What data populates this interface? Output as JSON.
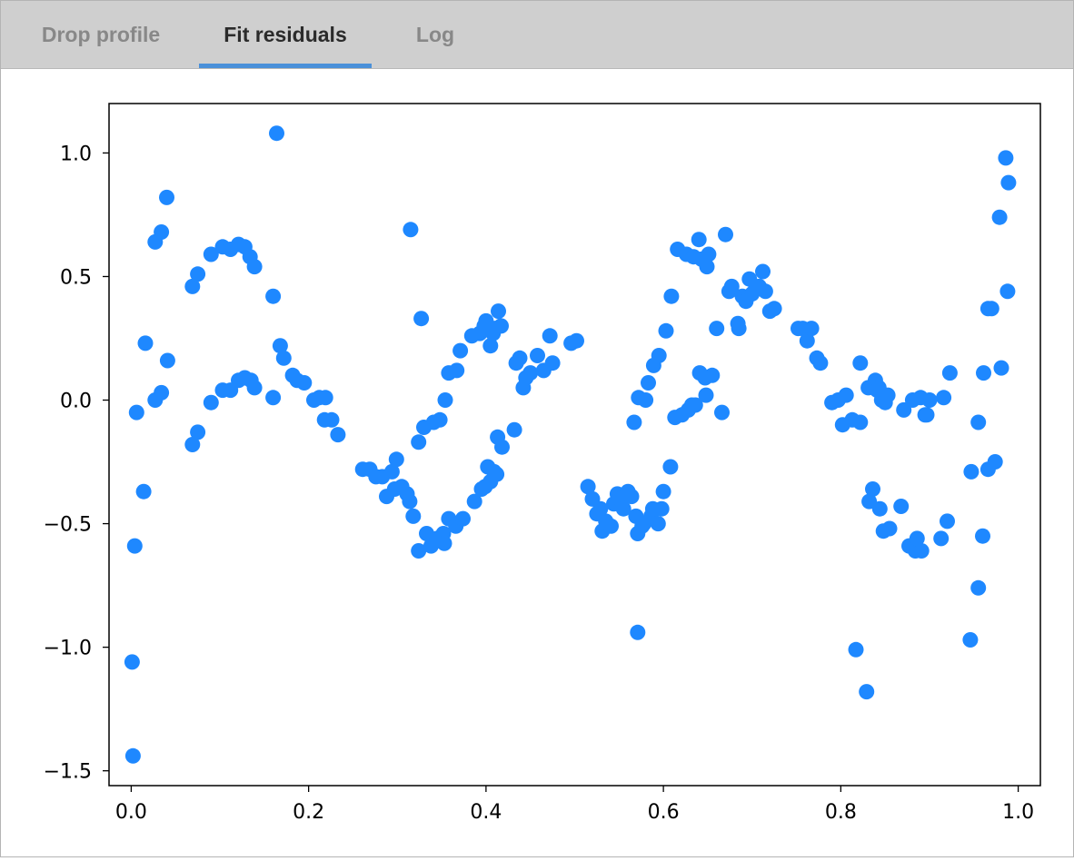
{
  "tabs": [
    {
      "label": "Drop profile",
      "active": false
    },
    {
      "label": "Fit residuals",
      "active": true
    },
    {
      "label": "Log",
      "active": false
    }
  ],
  "colors": {
    "accent": "#4a90d9",
    "point": "#1e88ff",
    "tab_bar": "#cfcfcf"
  },
  "chart_data": {
    "type": "scatter",
    "title": "",
    "xlabel": "",
    "ylabel": "",
    "xlim": [
      -0.025,
      1.025
    ],
    "ylim": [
      -1.56,
      1.2
    ],
    "grid": false,
    "xticks": [
      {
        "value": 0.0,
        "label": "0.0"
      },
      {
        "value": 0.2,
        "label": "0.2"
      },
      {
        "value": 0.4,
        "label": "0.4"
      },
      {
        "value": 0.6,
        "label": "0.6"
      },
      {
        "value": 0.8,
        "label": "0.8"
      },
      {
        "value": 1.0,
        "label": "1.0"
      }
    ],
    "yticks": [
      {
        "value": 1.0,
        "label": "1.0"
      },
      {
        "value": 0.5,
        "label": "0.5"
      },
      {
        "value": 0.0,
        "label": "0.0"
      },
      {
        "value": -0.5,
        "label": "−0.5"
      },
      {
        "value": -1.0,
        "label": "−1.0"
      },
      {
        "value": -1.5,
        "label": "−1.5"
      }
    ],
    "series": [
      {
        "color": "#1e88ff",
        "points": [
          [
            0.001,
            -1.06
          ],
          [
            0.002,
            -1.44
          ],
          [
            0.004,
            -0.59
          ],
          [
            0.006,
            -0.05
          ],
          [
            0.014,
            -0.37
          ],
          [
            0.016,
            0.23
          ],
          [
            0.027,
            0.64
          ],
          [
            0.027,
            0.0
          ],
          [
            0.034,
            0.68
          ],
          [
            0.034,
            0.03
          ],
          [
            0.04,
            0.82
          ],
          [
            0.041,
            0.16
          ],
          [
            0.069,
            -0.18
          ],
          [
            0.069,
            0.46
          ],
          [
            0.075,
            -0.13
          ],
          [
            0.075,
            0.51
          ],
          [
            0.09,
            -0.01
          ],
          [
            0.09,
            0.59
          ],
          [
            0.103,
            0.62
          ],
          [
            0.103,
            0.04
          ],
          [
            0.112,
            0.04
          ],
          [
            0.112,
            0.61
          ],
          [
            0.121,
            0.63
          ],
          [
            0.121,
            0.08
          ],
          [
            0.128,
            0.09
          ],
          [
            0.128,
            0.62
          ],
          [
            0.134,
            0.58
          ],
          [
            0.135,
            0.08
          ],
          [
            0.139,
            0.05
          ],
          [
            0.139,
            0.54
          ],
          [
            0.16,
            0.42
          ],
          [
            0.16,
            0.01
          ],
          [
            0.164,
            1.08
          ],
          [
            0.168,
            0.22
          ],
          [
            0.172,
            0.17
          ],
          [
            0.182,
            0.1
          ],
          [
            0.187,
            0.08
          ],
          [
            0.195,
            0.07
          ],
          [
            0.206,
            0.0
          ],
          [
            0.212,
            0.01
          ],
          [
            0.218,
            -0.08
          ],
          [
            0.219,
            0.01
          ],
          [
            0.226,
            -0.08
          ],
          [
            0.233,
            -0.14
          ],
          [
            0.261,
            -0.28
          ],
          [
            0.269,
            -0.28
          ],
          [
            0.276,
            -0.31
          ],
          [
            0.283,
            -0.31
          ],
          [
            0.288,
            -0.39
          ],
          [
            0.294,
            -0.29
          ],
          [
            0.297,
            -0.36
          ],
          [
            0.299,
            -0.24
          ],
          [
            0.305,
            -0.35
          ],
          [
            0.311,
            -0.38
          ],
          [
            0.314,
            -0.41
          ],
          [
            0.315,
            0.69
          ],
          [
            0.318,
            -0.47
          ],
          [
            0.324,
            -0.61
          ],
          [
            0.324,
            -0.17
          ],
          [
            0.327,
            0.33
          ],
          [
            0.33,
            -0.11
          ],
          [
            0.333,
            -0.54
          ],
          [
            0.338,
            -0.59
          ],
          [
            0.341,
            -0.09
          ],
          [
            0.345,
            -0.56
          ],
          [
            0.348,
            -0.08
          ],
          [
            0.352,
            -0.54
          ],
          [
            0.353,
            -0.58
          ],
          [
            0.354,
            0.0
          ],
          [
            0.358,
            -0.48
          ],
          [
            0.358,
            0.11
          ],
          [
            0.366,
            -0.51
          ],
          [
            0.367,
            0.12
          ],
          [
            0.371,
            0.2
          ],
          [
            0.374,
            -0.48
          ],
          [
            0.384,
            0.26
          ],
          [
            0.387,
            -0.41
          ],
          [
            0.393,
            0.27
          ],
          [
            0.395,
            -0.36
          ],
          [
            0.398,
            0.3
          ],
          [
            0.399,
            -0.35
          ],
          [
            0.4,
            0.32
          ],
          [
            0.402,
            -0.27
          ],
          [
            0.405,
            0.22
          ],
          [
            0.405,
            -0.33
          ],
          [
            0.408,
            0.27
          ],
          [
            0.409,
            -0.29
          ],
          [
            0.41,
            0.29
          ],
          [
            0.412,
            -0.3
          ],
          [
            0.413,
            -0.15
          ],
          [
            0.414,
            0.36
          ],
          [
            0.417,
            0.3
          ],
          [
            0.418,
            -0.19
          ],
          [
            0.432,
            -0.12
          ],
          [
            0.434,
            0.15
          ],
          [
            0.438,
            0.17
          ],
          [
            0.442,
            0.05
          ],
          [
            0.445,
            0.09
          ],
          [
            0.45,
            0.11
          ],
          [
            0.458,
            0.18
          ],
          [
            0.465,
            0.12
          ],
          [
            0.472,
            0.26
          ],
          [
            0.475,
            0.15
          ],
          [
            0.496,
            0.23
          ],
          [
            0.502,
            0.24
          ],
          [
            0.515,
            -0.35
          ],
          [
            0.52,
            -0.4
          ],
          [
            0.525,
            -0.46
          ],
          [
            0.529,
            -0.44
          ],
          [
            0.531,
            -0.53
          ],
          [
            0.535,
            -0.49
          ],
          [
            0.541,
            -0.51
          ],
          [
            0.544,
            -0.42
          ],
          [
            0.548,
            -0.38
          ],
          [
            0.551,
            -0.4
          ],
          [
            0.555,
            -0.44
          ],
          [
            0.56,
            -0.37
          ],
          [
            0.564,
            -0.39
          ],
          [
            0.567,
            -0.09
          ],
          [
            0.569,
            -0.47
          ],
          [
            0.571,
            -0.94
          ],
          [
            0.571,
            -0.54
          ],
          [
            0.572,
            0.01
          ],
          [
            0.576,
            -0.51
          ],
          [
            0.578,
            -0.5
          ],
          [
            0.58,
            0.0
          ],
          [
            0.583,
            0.07
          ],
          [
            0.586,
            -0.47
          ],
          [
            0.588,
            -0.44
          ],
          [
            0.589,
            0.14
          ],
          [
            0.594,
            -0.5
          ],
          [
            0.595,
            0.18
          ],
          [
            0.598,
            -0.44
          ],
          [
            0.6,
            -0.37
          ],
          [
            0.603,
            0.28
          ],
          [
            0.608,
            -0.27
          ],
          [
            0.609,
            0.42
          ],
          [
            0.613,
            -0.07
          ],
          [
            0.616,
            0.61
          ],
          [
            0.621,
            -0.06
          ],
          [
            0.626,
            0.59
          ],
          [
            0.628,
            -0.04
          ],
          [
            0.632,
            -0.02
          ],
          [
            0.634,
            0.58
          ],
          [
            0.636,
            -0.02
          ],
          [
            0.64,
            0.65
          ],
          [
            0.641,
            0.11
          ],
          [
            0.643,
            0.57
          ],
          [
            0.647,
            0.09
          ],
          [
            0.648,
            0.02
          ],
          [
            0.649,
            0.54
          ],
          [
            0.651,
            0.59
          ],
          [
            0.655,
            0.1
          ],
          [
            0.66,
            0.29
          ],
          [
            0.666,
            -0.05
          ],
          [
            0.67,
            0.67
          ],
          [
            0.674,
            0.44
          ],
          [
            0.677,
            0.46
          ],
          [
            0.684,
            0.31
          ],
          [
            0.685,
            0.29
          ],
          [
            0.689,
            0.42
          ],
          [
            0.693,
            0.4
          ],
          [
            0.697,
            0.49
          ],
          [
            0.7,
            0.43
          ],
          [
            0.704,
            0.45
          ],
          [
            0.708,
            0.46
          ],
          [
            0.712,
            0.52
          ],
          [
            0.715,
            0.44
          ],
          [
            0.72,
            0.36
          ],
          [
            0.725,
            0.37
          ],
          [
            0.752,
            0.29
          ],
          [
            0.757,
            0.29
          ],
          [
            0.762,
            0.24
          ],
          [
            0.767,
            0.29
          ],
          [
            0.773,
            0.17
          ],
          [
            0.777,
            0.15
          ],
          [
            0.79,
            -0.01
          ],
          [
            0.797,
            0.0
          ],
          [
            0.802,
            -0.1
          ],
          [
            0.806,
            0.02
          ],
          [
            0.813,
            -0.08
          ],
          [
            0.817,
            -1.01
          ],
          [
            0.822,
            0.15
          ],
          [
            0.822,
            -0.09
          ],
          [
            0.829,
            -1.18
          ],
          [
            0.831,
            0.05
          ],
          [
            0.832,
            -0.41
          ],
          [
            0.836,
            -0.36
          ],
          [
            0.839,
            0.08
          ],
          [
            0.841,
            0.04
          ],
          [
            0.843,
            0.05
          ],
          [
            0.844,
            -0.44
          ],
          [
            0.846,
            0.0
          ],
          [
            0.848,
            -0.53
          ],
          [
            0.85,
            -0.01
          ],
          [
            0.853,
            0.02
          ],
          [
            0.855,
            -0.52
          ],
          [
            0.868,
            -0.43
          ],
          [
            0.871,
            -0.04
          ],
          [
            0.877,
            -0.59
          ],
          [
            0.881,
            0.0
          ],
          [
            0.884,
            -0.61
          ],
          [
            0.886,
            -0.56
          ],
          [
            0.89,
            0.01
          ],
          [
            0.891,
            -0.61
          ],
          [
            0.895,
            -0.06
          ],
          [
            0.897,
            -0.06
          ],
          [
            0.9,
            0.0
          ],
          [
            0.913,
            -0.56
          ],
          [
            0.916,
            0.01
          ],
          [
            0.92,
            -0.49
          ],
          [
            0.923,
            0.11
          ],
          [
            0.946,
            -0.97
          ],
          [
            0.947,
            -0.29
          ],
          [
            0.955,
            -0.76
          ],
          [
            0.955,
            -0.09
          ],
          [
            0.96,
            -0.55
          ],
          [
            0.961,
            0.11
          ],
          [
            0.966,
            -0.28
          ],
          [
            0.966,
            0.37
          ],
          [
            0.97,
            0.37
          ],
          [
            0.974,
            -0.25
          ],
          [
            0.979,
            0.74
          ],
          [
            0.981,
            0.13
          ],
          [
            0.986,
            0.98
          ],
          [
            0.988,
            0.44
          ],
          [
            0.989,
            0.88
          ]
        ]
      }
    ]
  }
}
